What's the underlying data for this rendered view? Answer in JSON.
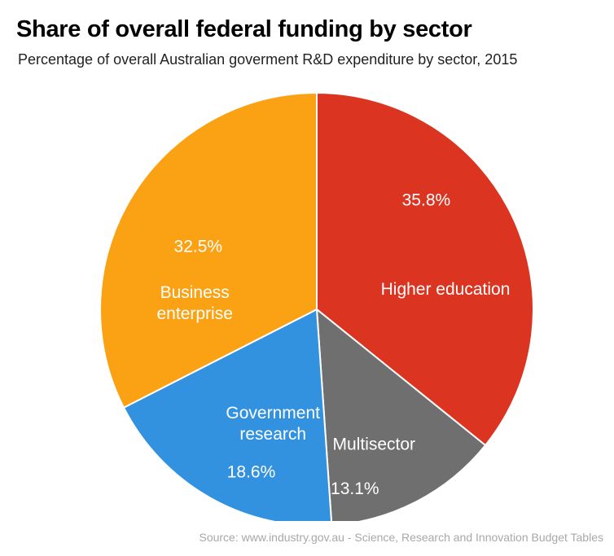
{
  "title": "Share of overall federal funding by sector",
  "subtitle": "Percentage of overall Australian goverment R&D expenditure by sector, 2015",
  "source": "Source: www.industry.gov.au - Science, Research and Innovation Budget Tables",
  "chart_data": {
    "type": "pie",
    "title": "Share of overall federal funding by sector",
    "start": "12 o'clock",
    "direction": "clockwise",
    "slices": [
      {
        "label": "Higher education",
        "value": 35.8,
        "value_label": "35.8%",
        "color": "#db3420"
      },
      {
        "label": "Multisector",
        "value": 13.1,
        "value_label": "13.1%",
        "color": "#6f6f6f"
      },
      {
        "label": "Government research",
        "value": 18.6,
        "value_label": "18.6%",
        "color": "#3392e0"
      },
      {
        "label": "Business enterprise",
        "value": 32.5,
        "value_label": "32.5%",
        "color": "#faa213"
      }
    ]
  }
}
